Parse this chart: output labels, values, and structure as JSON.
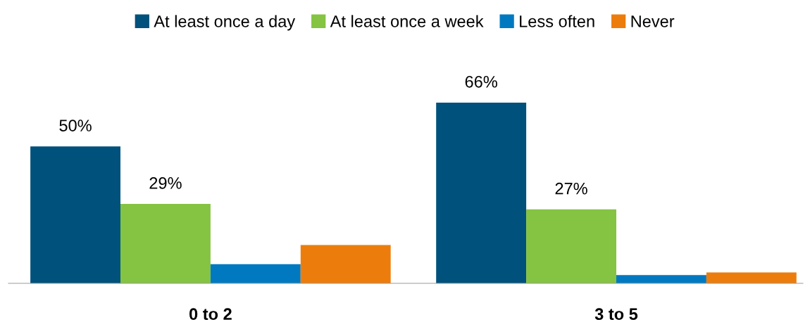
{
  "chart_data": {
    "type": "bar",
    "categories": [
      "0 to 2",
      "3 to 5"
    ],
    "series": [
      {
        "name": "At least once a day",
        "color": "#00517c",
        "values": [
          50,
          66
        ],
        "value_labels": [
          "50%",
          "66%"
        ]
      },
      {
        "name": "At least once a week",
        "color": "#85c342",
        "values": [
          29,
          27
        ],
        "value_labels": [
          "29%",
          "27%"
        ]
      },
      {
        "name": "Less often",
        "color": "#0079c1",
        "values": [
          7,
          3
        ]
      },
      {
        "name": "Never",
        "color": "#ec7d0d",
        "values": [
          14,
          4
        ]
      }
    ],
    "legend": "top",
    "grid": false
  }
}
